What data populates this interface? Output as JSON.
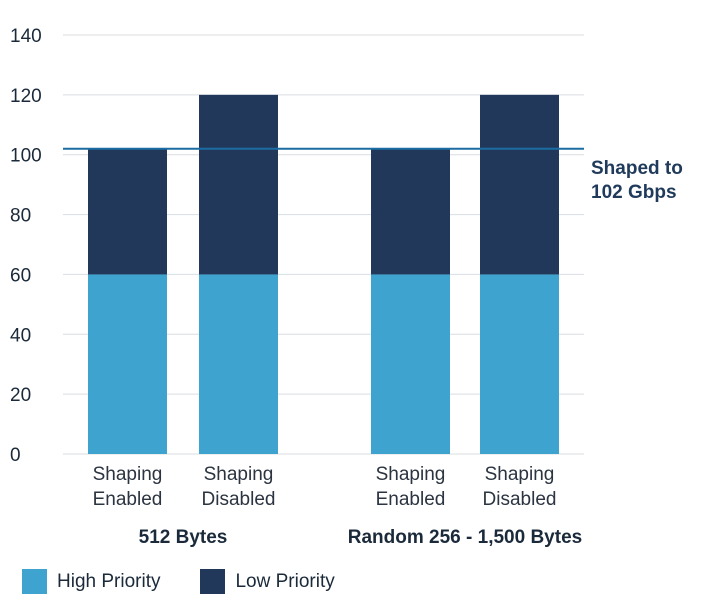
{
  "chart_data": {
    "type": "bar",
    "stacked": true,
    "groups": [
      {
        "label": "512 Bytes",
        "categories": [
          "Shaping\nEnabled",
          "Shaping\nDisabled"
        ]
      },
      {
        "label": "Random 256 - 1,500 Bytes",
        "categories": [
          "Shaping\nEnabled",
          "Shaping\nDisabled"
        ]
      }
    ],
    "series": [
      {
        "name": "High Priority",
        "color": "#3fa3cf",
        "values": [
          60,
          60,
          60,
          60
        ]
      },
      {
        "name": "Low Priority",
        "color": "#22385b",
        "values": [
          42,
          60,
          42,
          60
        ]
      }
    ],
    "ylim": [
      0,
      140
    ],
    "yticks": [
      0,
      20,
      40,
      60,
      80,
      100,
      120,
      140
    ],
    "grid": true,
    "reference_line": {
      "value": 102,
      "label": "Shaped to\n102 Gbps",
      "color": "#1a6ca3"
    },
    "legend_position": "bottom-left"
  }
}
